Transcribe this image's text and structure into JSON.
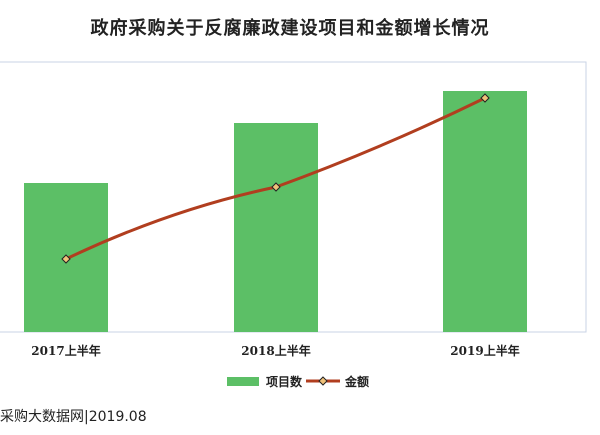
{
  "chart_data": {
    "title": "政府采购关于反腐廉政建设项目和金额增长情况",
    "type": "bar",
    "categories": [
      "2017上半年",
      "2018上半年",
      "2019上半年"
    ],
    "series": [
      {
        "name": "项目数",
        "type": "bar",
        "values": [
          149,
          209,
          241
        ],
        "color": "#5cbf66"
      },
      {
        "name": "金额",
        "type": "line",
        "values": [
          73,
          145,
          234
        ],
        "color": "#b13e1f",
        "marker": "diamond"
      }
    ],
    "ylim": [
      0,
      270
    ],
    "grid": false,
    "legend_position": "bottom"
  },
  "source": "采购大数据网|2019.08"
}
